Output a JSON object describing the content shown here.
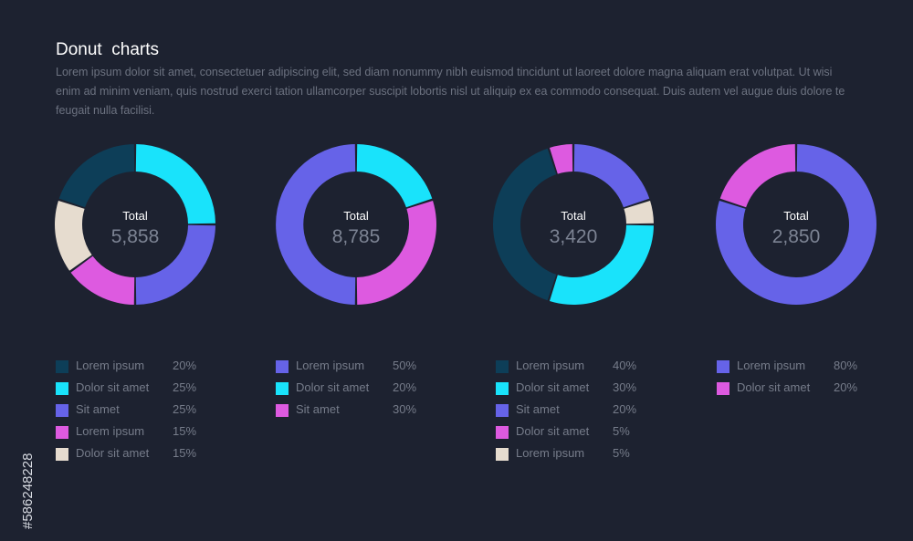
{
  "title": "Donut  charts",
  "description": "Lorem ipsum dolor sit amet, consectetuer adipiscing elit, sed diam nonummy nibh euismod tincidunt ut laoreet dolore magna aliquam erat volutpat. Ut wisi enim ad minim veniam, quis nostrud exerci tation ullamcorper suscipit lobortis nisl ut aliquip ex ea commodo consequat. Duis autem vel augue duis dolore te feugait nulla facilisi.",
  "colors": {
    "background": "#1d2230",
    "dark_blue": "#0d3e58",
    "cyan": "#19e3fb",
    "purple": "#6663e8",
    "magenta": "#dd5ae0",
    "beige": "#e6dccf",
    "label_text": "#ffffff",
    "total_number": "#7c8393",
    "legend_text": "#767c8a"
  },
  "watermark": "#586248228",
  "chart_data": [
    {
      "type": "pie",
      "total_label": "Total",
      "total_value": "5,858",
      "slices": [
        {
          "label": "Lorem ipsum",
          "value": 20,
          "display": "20%",
          "color": "#0d3e58"
        },
        {
          "label": "Dolor sit amet",
          "value": 25,
          "display": "25%",
          "color": "#19e3fb"
        },
        {
          "label": "Sit amet",
          "value": 25,
          "display": "25%",
          "color": "#6663e8"
        },
        {
          "label": "Lorem ipsum",
          "value": 15,
          "display": "15%",
          "color": "#dd5ae0"
        },
        {
          "label": "Dolor sit amet",
          "value": 15,
          "display": "15%",
          "color": "#e6dccf"
        }
      ],
      "draw_order": [
        1,
        2,
        3,
        4,
        0
      ]
    },
    {
      "type": "pie",
      "total_label": "Total",
      "total_value": "8,785",
      "slices": [
        {
          "label": "Lorem ipsum",
          "value": 50,
          "display": "50%",
          "color": "#6663e8"
        },
        {
          "label": "Dolor sit amet",
          "value": 20,
          "display": "20%",
          "color": "#19e3fb"
        },
        {
          "label": "Sit amet",
          "value": 30,
          "display": "30%",
          "color": "#dd5ae0"
        }
      ],
      "draw_order": [
        1,
        2,
        0
      ]
    },
    {
      "type": "pie",
      "total_label": "Total",
      "total_value": "3,420",
      "slices": [
        {
          "label": "Lorem ipsum",
          "value": 40,
          "display": "40%",
          "color": "#0d3e58"
        },
        {
          "label": "Dolor sit amet",
          "value": 30,
          "display": "30%",
          "color": "#19e3fb"
        },
        {
          "label": "Sit amet",
          "value": 20,
          "display": "20%",
          "color": "#6663e8"
        },
        {
          "label": "Dolor sit amet",
          "value": 5,
          "display": "5%",
          "color": "#dd5ae0"
        },
        {
          "label": "Lorem ipsum",
          "value": 5,
          "display": "5%",
          "color": "#e6dccf"
        }
      ],
      "draw_order": [
        2,
        4,
        1,
        0,
        3
      ]
    },
    {
      "type": "pie",
      "total_label": "Total",
      "total_value": "2,850",
      "slices": [
        {
          "label": "Lorem ipsum",
          "value": 80,
          "display": "80%",
          "color": "#6663e8"
        },
        {
          "label": "Dolor sit amet",
          "value": 20,
          "display": "20%",
          "color": "#dd5ae0"
        }
      ],
      "draw_order": [
        0,
        1
      ]
    }
  ]
}
